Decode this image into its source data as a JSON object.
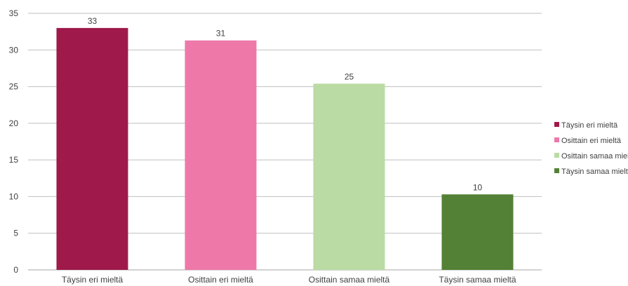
{
  "chart_data": {
    "type": "bar",
    "title": "",
    "xlabel": "",
    "ylabel": "",
    "categories": [
      "Täysin eri mieltä",
      "Osittain eri mieltä",
      "Osittain samaa mieltä",
      "Täysin samaa mieltä"
    ],
    "values": [
      33,
      31.3,
      25.4,
      10.3
    ],
    "data_labels": [
      "33",
      "31",
      "25",
      "10"
    ],
    "colors": [
      "#A0194B",
      "#EE79A9",
      "#BADBA3",
      "#538135"
    ],
    "ylim": [
      0,
      35
    ],
    "yticks": [
      0,
      5,
      10,
      15,
      20,
      25,
      30,
      35
    ],
    "grid": true,
    "legend": {
      "position": "right",
      "entries": [
        "Täysin eri mieltä",
        "Osittain eri mieltä",
        "Osittain samaa mieltä",
        "Täysin samaa mieltä"
      ]
    }
  }
}
